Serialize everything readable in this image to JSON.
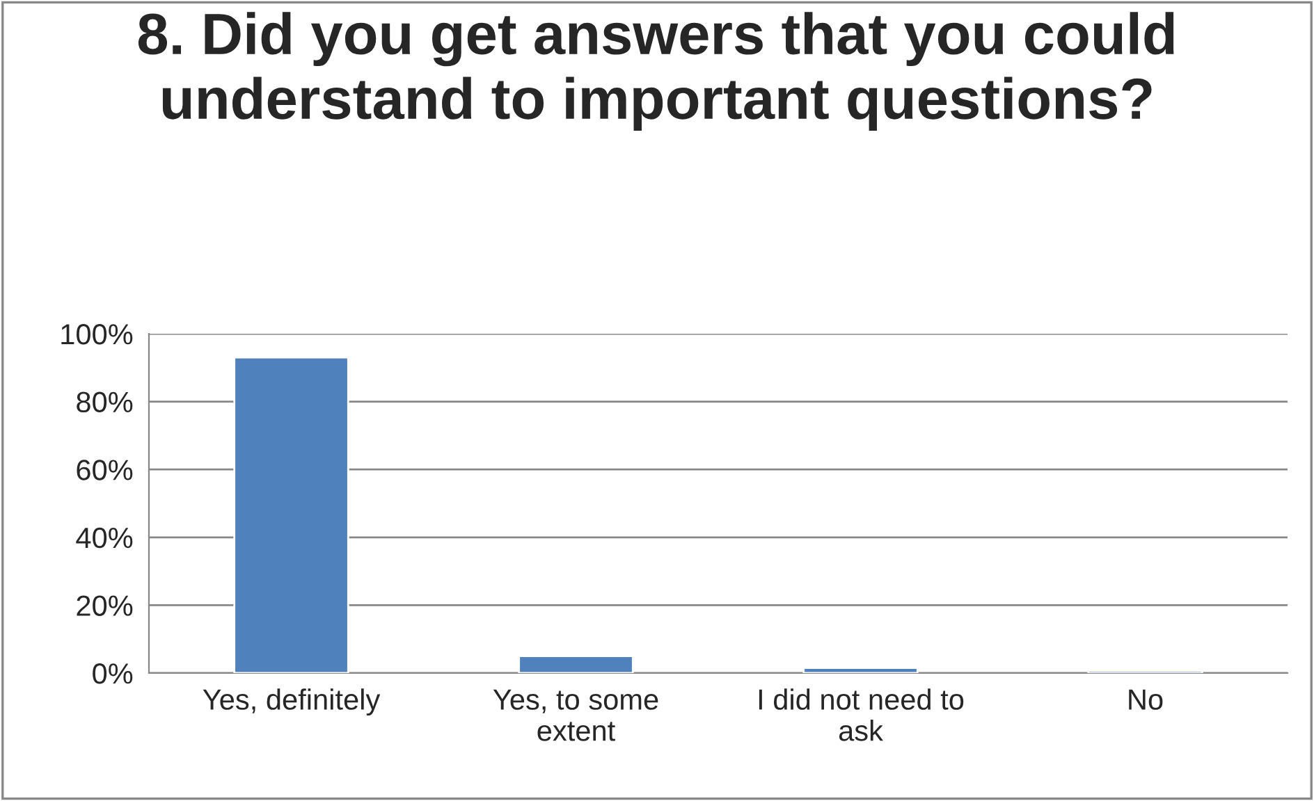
{
  "chart_data": {
    "type": "bar",
    "title": "8. Did you get answers that you could understand to important questions?",
    "categories": [
      "Yes, definitely",
      "Yes, to some extent",
      "I did not need to ask",
      "No"
    ],
    "values": [
      93,
      5,
      1.5,
      0.7
    ],
    "color": "#4f81bd",
    "ylim": [
      0,
      100
    ],
    "yticks": [
      {
        "value": 0,
        "label": "0%"
      },
      {
        "value": 20,
        "label": "20%"
      },
      {
        "value": 40,
        "label": "40%"
      },
      {
        "value": 60,
        "label": "60%"
      },
      {
        "value": 80,
        "label": "80%"
      },
      {
        "value": 100,
        "label": "100%"
      }
    ],
    "grid": "y",
    "legend": false
  }
}
